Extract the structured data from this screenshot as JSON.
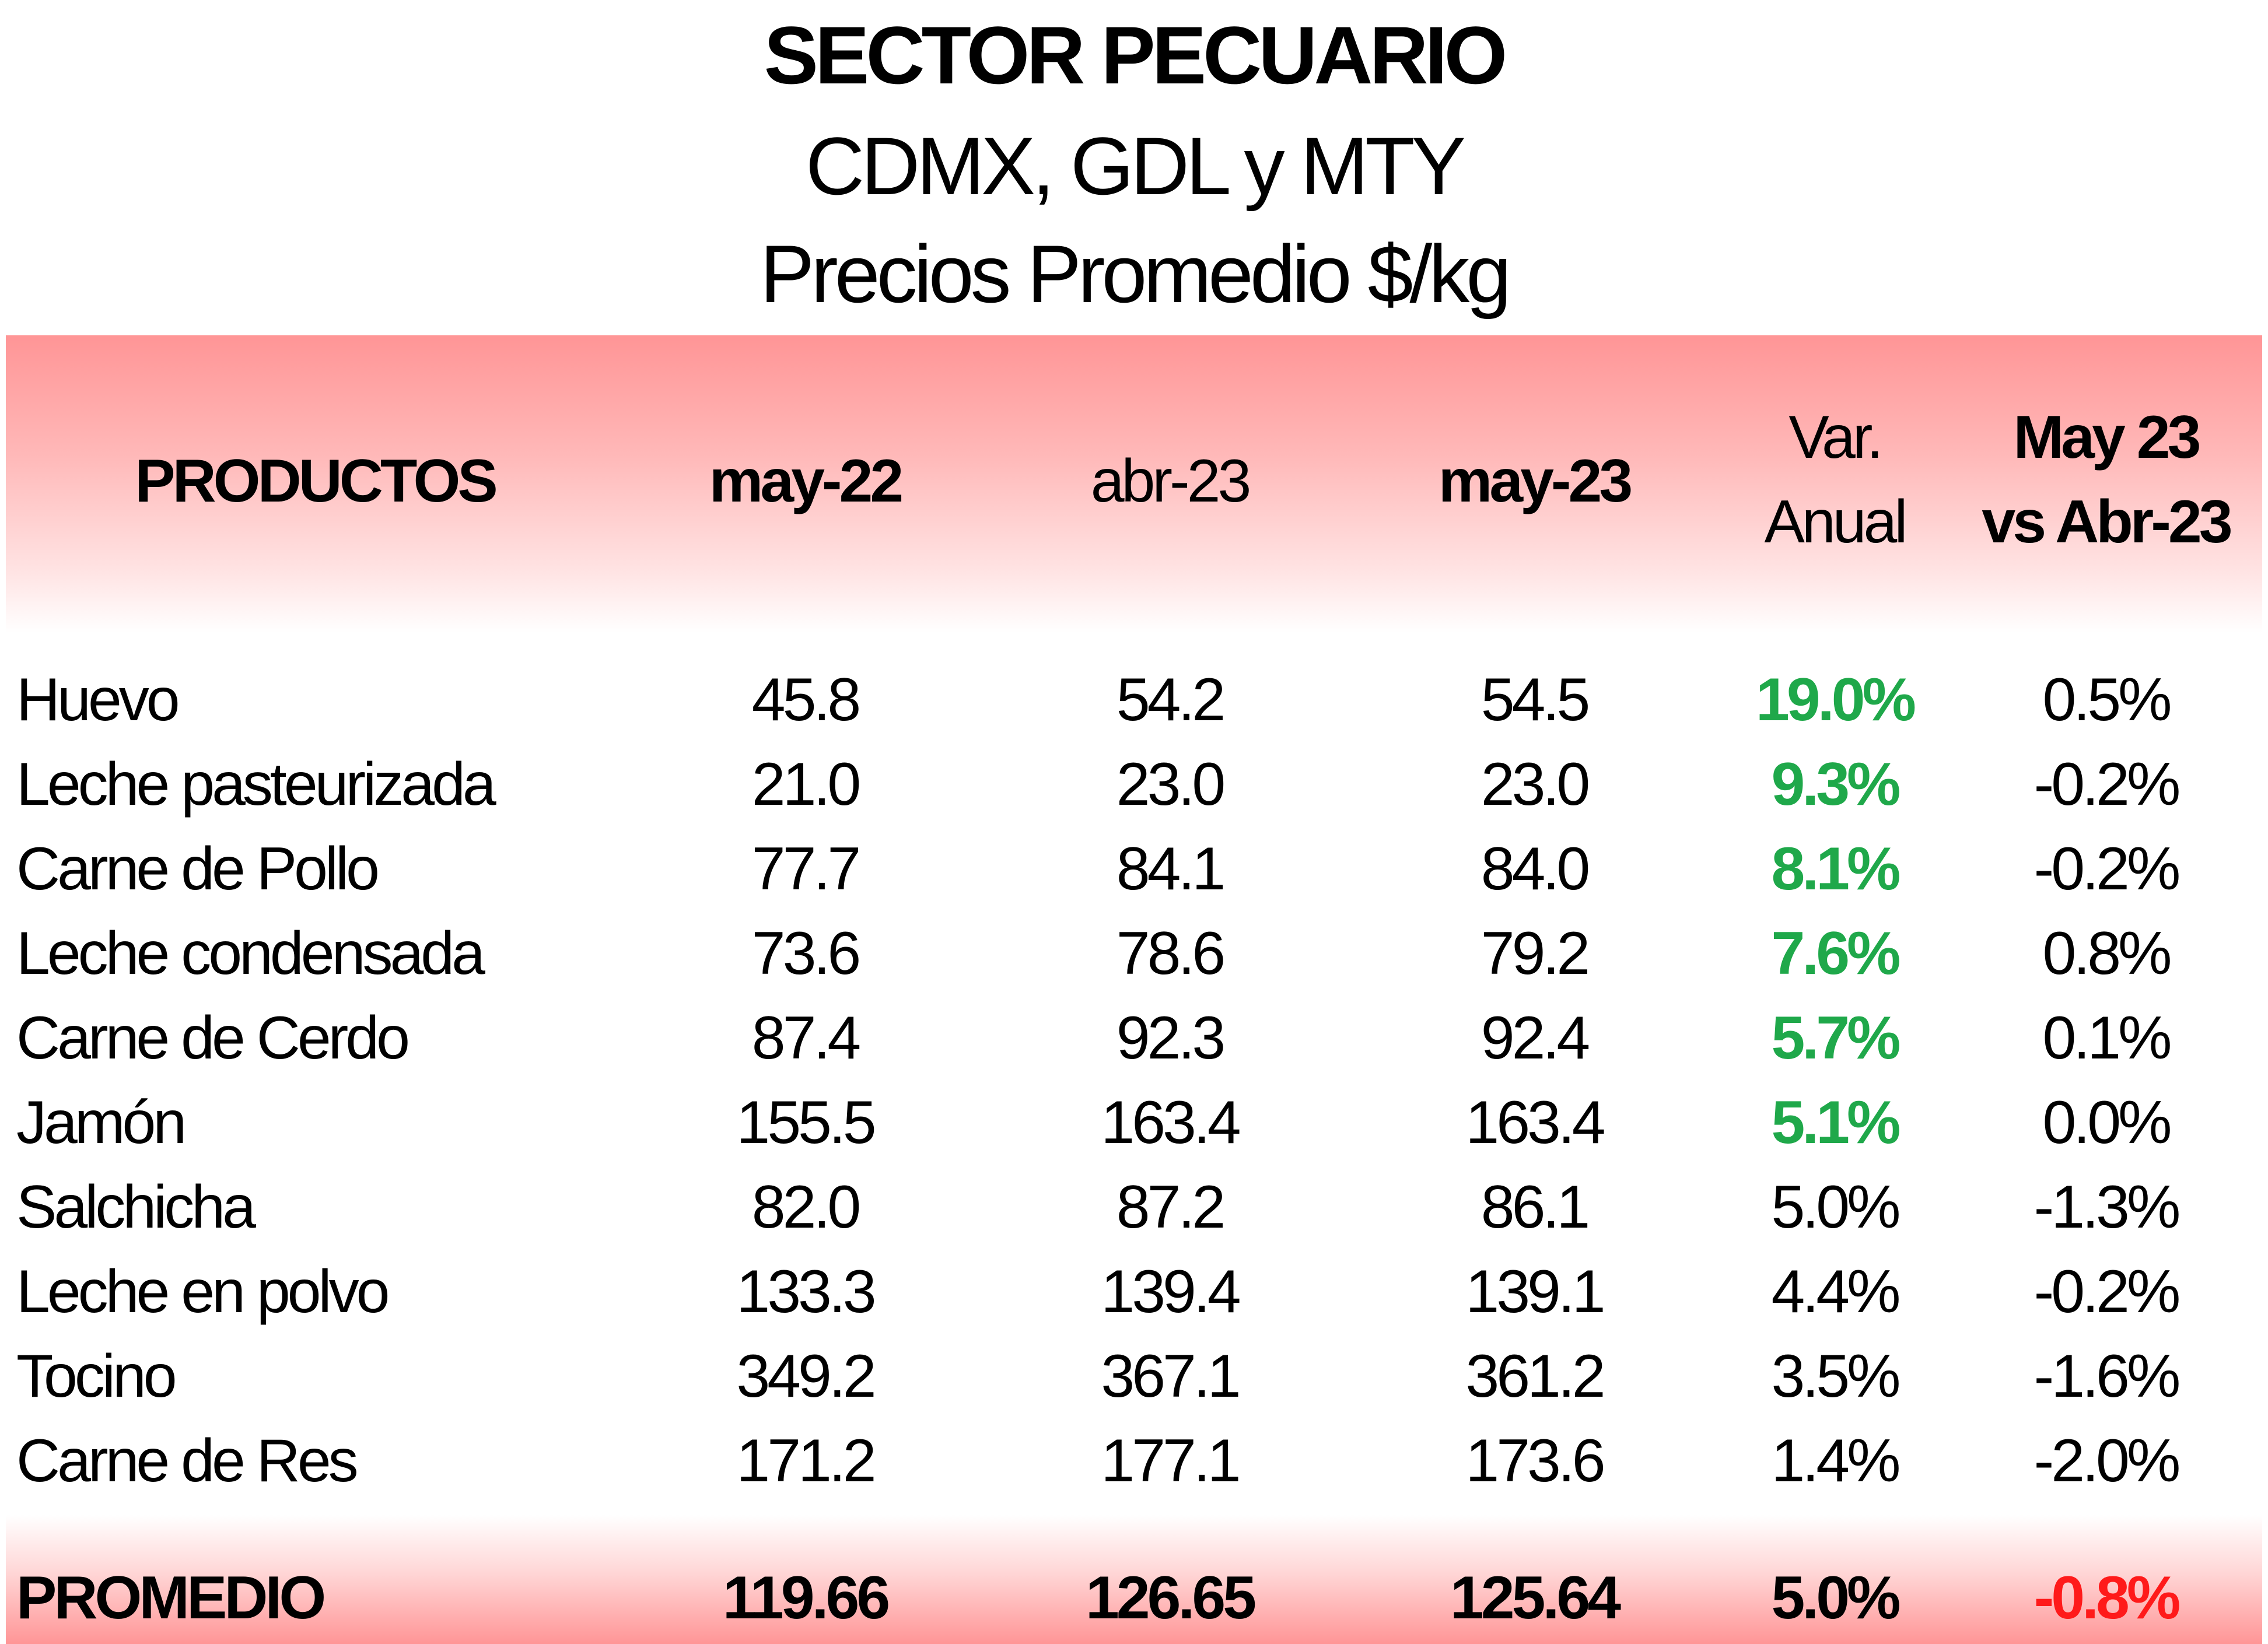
{
  "title": "SECTOR PECUARIO",
  "subtitle": "CDMX, GDL y MTY",
  "subtitle2": "Precios Promedio $/kg",
  "headers": {
    "products": "PRODUCTOS",
    "c1": "may-22",
    "c2": "abr-23",
    "c3": "may-23",
    "c4_line1": "Var.",
    "c4_line2": "Anual",
    "c5_line1": "May 23",
    "c5_line2": "vs Abr-23"
  },
  "rows": [
    {
      "product": "Huevo",
      "c1": "45.8",
      "c2": "54.2",
      "c3": "54.5",
      "var": "19.0%",
      "mom": "0.5%",
      "var_highlight": true
    },
    {
      "product": "Leche pasteurizada",
      "c1": "21.0",
      "c2": "23.0",
      "c3": "23.0",
      "var": "9.3%",
      "mom": "-0.2%",
      "var_highlight": true
    },
    {
      "product": "Carne de Pollo",
      "c1": "77.7",
      "c2": "84.1",
      "c3": "84.0",
      "var": "8.1%",
      "mom": "-0.2%",
      "var_highlight": true
    },
    {
      "product": "Leche condensada",
      "c1": "73.6",
      "c2": "78.6",
      "c3": "79.2",
      "var": "7.6%",
      "mom": "0.8%",
      "var_highlight": true
    },
    {
      "product": "Carne de Cerdo",
      "c1": "87.4",
      "c2": "92.3",
      "c3": "92.4",
      "var": "5.7%",
      "mom": "0.1%",
      "var_highlight": true
    },
    {
      "product": "Jamón",
      "c1": "155.5",
      "c2": "163.4",
      "c3": "163.4",
      "var": "5.1%",
      "mom": "0.0%",
      "var_highlight": true
    },
    {
      "product": "Salchicha",
      "c1": "82.0",
      "c2": "87.2",
      "c3": "86.1",
      "var": "5.0%",
      "mom": "-1.3%",
      "var_highlight": false
    },
    {
      "product": "Leche en polvo",
      "c1": "133.3",
      "c2": "139.4",
      "c3": "139.1",
      "var": "4.4%",
      "mom": "-0.2%",
      "var_highlight": false
    },
    {
      "product": "Tocino",
      "c1": "349.2",
      "c2": "367.1",
      "c3": "361.2",
      "var": "3.5%",
      "mom": "-1.6%",
      "var_highlight": false
    },
    {
      "product": "Carne de Res",
      "c1": "171.2",
      "c2": "177.1",
      "c3": "173.6",
      "var": "1.4%",
      "mom": "-2.0%",
      "var_highlight": false
    }
  ],
  "footer": {
    "label": "PROMEDIO",
    "c1": "119.66",
    "c2": "126.65",
    "c3": "125.64",
    "var": "5.0%",
    "mom": "-0.8%"
  },
  "colors": {
    "header_band": "#ff9596",
    "positive_highlight": "#1fa84a",
    "negative_highlight": "#ff1a1a"
  }
}
